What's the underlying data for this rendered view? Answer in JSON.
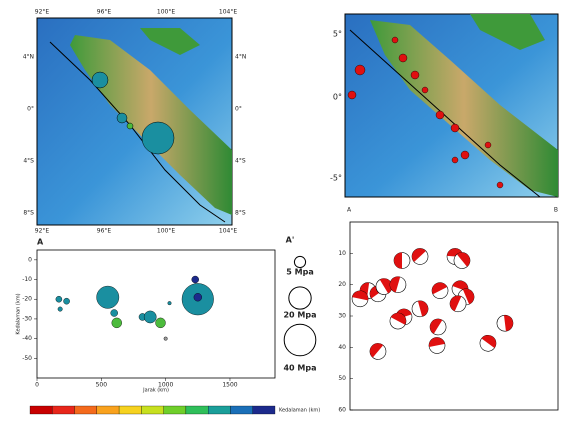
{
  "map_left": {
    "lon_ticks": [
      "92°E",
      "96°E",
      "100°E",
      "104°E"
    ],
    "lat_ticks": [
      "4°N",
      "0°",
      "4°S",
      "8°S"
    ]
  },
  "map_right": {
    "lat_ticks": [
      "5°",
      "0°",
      "-5°"
    ],
    "label_start": "A",
    "label_end": "B"
  },
  "chart_data": [
    {
      "type": "scatter",
      "label_start": "A",
      "label_end": "A'",
      "x_label": "Jarak (km)",
      "y_label": "Kedalaman (km)",
      "xlim": [
        0,
        1850
      ],
      "ylim": [
        -60,
        5
      ],
      "xticks": [
        0,
        500,
        1000,
        1500
      ],
      "yticks": [
        0,
        -10,
        -20,
        -30,
        -40,
        -50
      ],
      "x": [
        170,
        230,
        180,
        550,
        600,
        620,
        820,
        880,
        960,
        1000,
        1030,
        1250,
        1250,
        1230
      ],
      "values": [
        -20,
        -21,
        -25,
        -19,
        -27,
        -32,
        -29,
        -29,
        -32,
        -40,
        -22,
        -20,
        -19,
        -10
      ],
      "sizes": [
        1.5,
        1.5,
        0.8,
        20,
        2,
        4,
        2,
        6,
        4,
        0.5,
        0.5,
        40,
        2.5,
        2
      ],
      "colors": [
        "#1a8fa0",
        "#1a8fa0",
        "#1a8fa0",
        "#1a8fa0",
        "#1a8fa0",
        "#4cbb3c",
        "#1a8fa0",
        "#1a8fa0",
        "#4cbb3c",
        "#999999",
        "#1a8fa0",
        "#1a8fa0",
        "#1c2a8c",
        "#1c2a8c"
      ],
      "size_legend": [
        {
          "value": 5,
          "label": "5 Mpa"
        },
        {
          "value": 20,
          "label": "20 Mpa"
        },
        {
          "value": 40,
          "label": "40 Mpa"
        }
      ],
      "colorbar": {
        "label": "Kedalaman (km)",
        "colors": [
          "#c80000",
          "#e8261a",
          "#f46a1c",
          "#f9a21e",
          "#f6d21f",
          "#c7e01f",
          "#6fcf2a",
          "#2fbf5a",
          "#1a9f9a",
          "#1a6fb8",
          "#1c2a8c"
        ]
      }
    },
    {
      "type": "beachball",
      "ylim": [
        0,
        60
      ],
      "y_inverted": true,
      "yticks": [
        10,
        20,
        30,
        40,
        50,
        60
      ],
      "xlim": [
        0,
        1800
      ],
      "x": [
        450,
        606,
        909,
        969,
        156,
        242,
        87,
        294,
        415,
        779,
        952,
        1004,
        935,
        467,
        415,
        606,
        762,
        753,
        1194,
        1341,
        242
      ],
      "values": [
        12.3,
        11,
        11,
        12.3,
        21.9,
        22.9,
        24.5,
        20.6,
        20,
        21.9,
        21.3,
        23.9,
        26.1,
        30.3,
        31.6,
        27.7,
        33.5,
        39.4,
        38.7,
        32.3,
        41.3
      ],
      "color": "#e01010"
    }
  ]
}
